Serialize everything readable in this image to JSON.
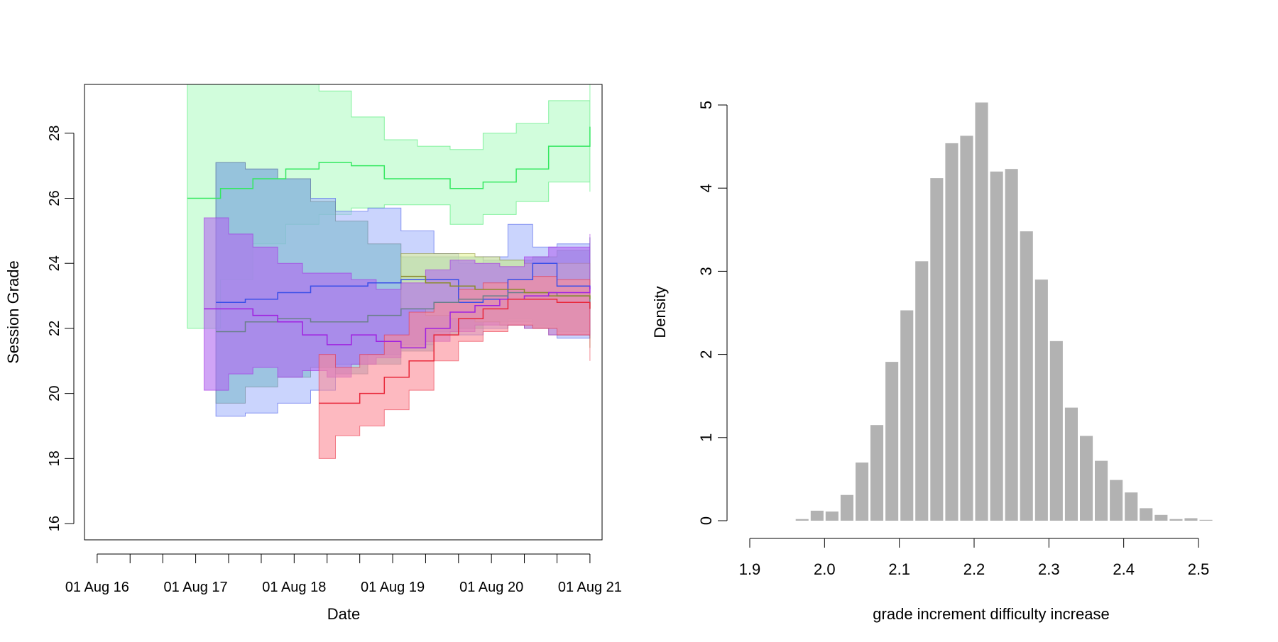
{
  "chart_data": [
    {
      "type": "area",
      "xlabel": "Date",
      "ylabel": "Session Grade",
      "x_ticks": [
        "01 Aug 16",
        "01 Aug 17",
        "01 Aug 18",
        "01 Aug 19",
        "01 Aug 20",
        "01 Aug 21"
      ],
      "x_range": [
        "2016-06-15",
        "2021-09-15"
      ],
      "y_ticks": [
        16,
        18,
        20,
        22,
        24,
        26,
        28
      ],
      "ylim": [
        15.5,
        29.5
      ],
      "grid": false,
      "series": [
        {
          "color": "#34e860",
          "fill": "#b3fbc5",
          "x": [
            "2017-07-01",
            "2017-11-01",
            "2018-03-01",
            "2018-07-01",
            "2018-11-01",
            "2019-03-01",
            "2019-07-01",
            "2019-11-01",
            "2020-03-01",
            "2020-07-01",
            "2020-11-01",
            "2021-03-01",
            "2021-08-01"
          ],
          "mean": [
            26.0,
            26.3,
            26.6,
            26.9,
            27.1,
            27.0,
            26.6,
            26.6,
            26.3,
            26.5,
            26.9,
            27.6,
            28.2
          ],
          "lower": [
            22.0,
            23.5,
            24.6,
            25.2,
            25.5,
            25.7,
            25.8,
            25.8,
            25.2,
            25.5,
            25.9,
            26.5,
            26.2
          ],
          "upper": [
            29.5,
            29.5,
            29.5,
            29.5,
            29.3,
            28.5,
            27.8,
            27.6,
            27.5,
            28.0,
            28.3,
            29.0,
            29.5
          ]
        },
        {
          "color": "#3a4fe8",
          "fill": "#a6b8fb",
          "x": [
            "2017-10-15",
            "2018-02-01",
            "2018-06-01",
            "2018-10-01",
            "2019-01-01",
            "2019-05-01",
            "2019-09-01",
            "2020-01-01",
            "2020-04-01",
            "2020-07-01",
            "2020-10-01",
            "2021-01-01",
            "2021-04-01",
            "2021-08-01"
          ],
          "mean": [
            22.8,
            22.9,
            23.1,
            23.3,
            23.3,
            23.4,
            23.5,
            23.5,
            22.8,
            22.9,
            23.5,
            24.0,
            23.3,
            23.2
          ],
          "lower": [
            19.3,
            19.4,
            19.7,
            20.1,
            20.9,
            21.2,
            21.5,
            21.9,
            21.8,
            22.0,
            22.3,
            22.1,
            21.7,
            22.4
          ],
          "upper": [
            27.1,
            26.9,
            26.6,
            26.0,
            25.6,
            25.7,
            25.0,
            24.3,
            24.0,
            24.2,
            25.2,
            24.5,
            24.6,
            24.8
          ]
        },
        {
          "color": "#6a7f8b",
          "fill": "#7fb9cf",
          "x": [
            "2017-10-15",
            "2018-02-01",
            "2018-06-01",
            "2018-10-01",
            "2019-01-01",
            "2019-05-01",
            "2019-09-01",
            "2020-01-01",
            "2020-04-01",
            "2020-07-01",
            "2020-10-01",
            "2021-01-01",
            "2021-04-01",
            "2021-08-01"
          ],
          "mean": [
            21.9,
            22.2,
            22.3,
            22.2,
            22.2,
            22.4,
            22.6,
            22.8,
            22.9,
            23.0,
            23.1,
            23.1,
            23.0,
            22.6
          ],
          "lower": [
            19.7,
            20.2,
            20.5,
            20.8,
            20.6,
            20.9,
            21.3,
            21.8,
            22.0,
            22.2,
            22.2,
            22.0,
            21.9,
            21.7
          ],
          "upper": [
            27.1,
            26.9,
            26.6,
            25.9,
            25.3,
            24.6,
            24.2,
            24.2,
            24.2,
            24.1,
            24.1,
            24.2,
            24.4,
            24.8
          ]
        },
        {
          "color": "#8a8a2a",
          "fill": "#e2f59a",
          "x": [
            "2019-09-01",
            "2019-12-01",
            "2020-03-01",
            "2020-06-01",
            "2020-09-01",
            "2020-12-01",
            "2021-03-01",
            "2021-08-01"
          ],
          "mean": [
            23.6,
            23.4,
            23.3,
            23.2,
            23.2,
            23.1,
            23.0,
            22.9
          ],
          "lower": [
            22.6,
            22.4,
            22.3,
            22.2,
            22.1,
            22.0,
            21.8,
            21.4
          ],
          "upper": [
            24.3,
            24.3,
            24.3,
            24.2,
            24.1,
            24.0,
            24.0,
            23.9
          ]
        },
        {
          "color": "#a022e0",
          "fill": "#b068f0",
          "x": [
            "2017-09-01",
            "2017-12-01",
            "2018-03-01",
            "2018-06-01",
            "2018-09-01",
            "2018-12-01",
            "2019-03-01",
            "2019-06-01",
            "2019-09-01",
            "2019-12-01",
            "2020-03-01",
            "2020-06-01",
            "2020-09-01",
            "2020-12-01",
            "2021-03-01",
            "2021-08-01"
          ],
          "mean": [
            22.6,
            22.6,
            22.4,
            22.2,
            21.8,
            21.5,
            21.8,
            21.6,
            21.4,
            22.0,
            22.5,
            22.7,
            22.9,
            23.0,
            23.1,
            23.3
          ],
          "lower": [
            20.1,
            20.6,
            20.8,
            20.5,
            20.7,
            20.5,
            20.9,
            21.1,
            21.4,
            21.6,
            21.9,
            22.1,
            22.1,
            22.0,
            21.8,
            22.2
          ],
          "upper": [
            25.4,
            24.9,
            24.5,
            24.0,
            23.7,
            23.7,
            23.5,
            23.2,
            23.4,
            23.8,
            24.1,
            24.0,
            23.9,
            24.2,
            24.5,
            24.9
          ]
        },
        {
          "color": "#e8283a",
          "fill": "#fb8a96",
          "x": [
            "2018-11-01",
            "2019-01-01",
            "2019-04-01",
            "2019-07-01",
            "2019-10-01",
            "2020-01-01",
            "2020-04-01",
            "2020-07-01",
            "2020-10-01",
            "2021-01-01",
            "2021-04-01",
            "2021-08-01"
          ],
          "mean": [
            19.7,
            19.7,
            20.0,
            20.5,
            21.0,
            21.8,
            22.3,
            22.6,
            22.9,
            22.9,
            22.8,
            22.6
          ],
          "lower": [
            18.0,
            18.7,
            19.0,
            19.5,
            20.1,
            21.0,
            21.6,
            21.9,
            22.1,
            22.0,
            21.8,
            21.0
          ],
          "upper": [
            21.2,
            20.8,
            21.2,
            21.8,
            22.5,
            22.8,
            23.2,
            23.4,
            23.5,
            23.6,
            23.5,
            23.4
          ]
        }
      ]
    },
    {
      "type": "bar",
      "subtype": "histogram",
      "xlabel": "grade increment difficulty increase",
      "ylabel": "Density",
      "x_ticks": [
        "1.9",
        "2.0",
        "2.1",
        "2.2",
        "2.3",
        "2.4",
        "2.5"
      ],
      "y_ticks": [
        "0",
        "1",
        "2",
        "3",
        "4",
        "5"
      ],
      "xlim": [
        1.9,
        2.5
      ],
      "ylim": [
        0,
        5.2
      ],
      "bar_color": "#b2b2b2",
      "bin_width": 0.02,
      "bin_starts": [
        1.96,
        1.98,
        2.0,
        2.02,
        2.04,
        2.06,
        2.08,
        2.1,
        2.12,
        2.14,
        2.16,
        2.18,
        2.2,
        2.22,
        2.24,
        2.26,
        2.28,
        2.3,
        2.32,
        2.34,
        2.36,
        2.38,
        2.4,
        2.42,
        2.44,
        2.46,
        2.48,
        2.5
      ],
      "values": [
        0.02,
        0.12,
        0.11,
        0.31,
        0.7,
        1.15,
        1.91,
        2.53,
        3.12,
        4.12,
        4.54,
        4.63,
        5.03,
        4.2,
        4.23,
        3.48,
        2.9,
        2.16,
        1.36,
        1.02,
        0.72,
        0.49,
        0.34,
        0.15,
        0.07,
        0.02,
        0.03,
        0.01
      ]
    }
  ]
}
